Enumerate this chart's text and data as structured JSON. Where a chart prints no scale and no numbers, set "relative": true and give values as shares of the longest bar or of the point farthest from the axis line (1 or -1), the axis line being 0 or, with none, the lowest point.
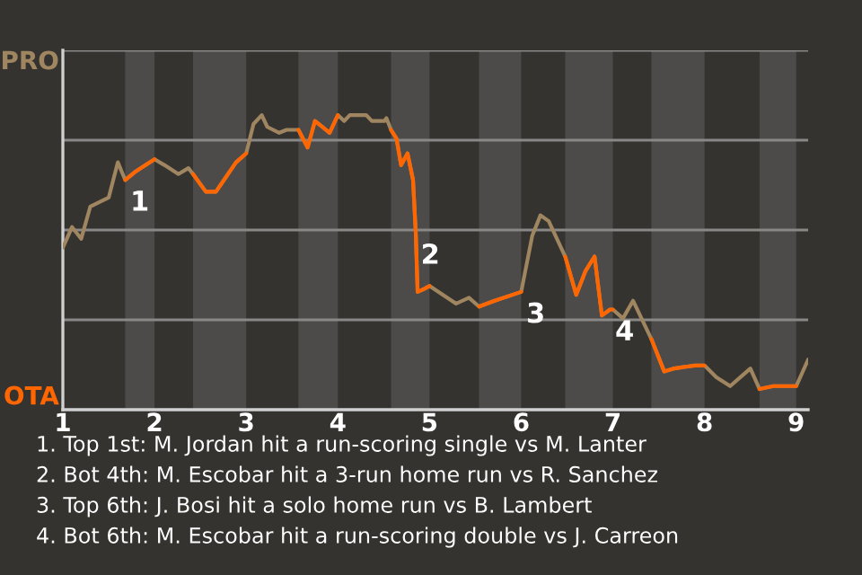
{
  "chart_data": {
    "type": "line",
    "relative": true,
    "x": [
      1,
      1.1,
      1.2,
      1.3,
      1.5,
      1.6,
      1.68,
      1.8,
      2,
      2.11,
      2.26,
      2.37,
      2.42,
      2.56,
      2.67,
      2.89,
      3,
      3.08,
      3.17,
      3.23,
      3.36,
      3.44,
      3.57,
      3.67,
      3.75,
      3.83,
      3.91,
      4,
      4.07,
      4.13,
      4.31,
      4.37,
      4.51,
      4.53,
      4.58,
      4.64,
      4.69,
      4.76,
      4.82,
      4.85,
      4.87,
      4.94,
      5,
      5.29,
      5.43,
      5.54,
      5.71,
      6,
      6.12,
      6.21,
      6.3,
      6.48,
      6.6,
      6.7,
      6.8,
      6.88,
      6.97,
      7,
      7.11,
      7.22,
      7.42,
      7.56,
      7.67,
      7.89,
      8,
      8.13,
      8.28,
      8.5,
      8.6,
      8.75,
      9,
      9.13
    ],
    "xlim": [
      1,
      9.13
    ],
    "xticks": [
      1,
      2,
      3,
      4,
      5,
      6,
      7,
      8,
      9
    ],
    "series": [
      {
        "name": "PRO",
        "color": "#a08660",
        "values": [
          0.55,
          0.62,
          0.58,
          0.69,
          0.72,
          0.84,
          0.78,
          0.81,
          0.85,
          0.83,
          0.8,
          0.82,
          0.8,
          0.74,
          0.74,
          0.84,
          0.87,
          0.97,
          1,
          0.96,
          0.94,
          0.95,
          0.95,
          0.89,
          0.98,
          0.96,
          0.94,
          1,
          0.98,
          1,
          1,
          0.98,
          0.98,
          0.99,
          0.95,
          0.92,
          0.83,
          0.87,
          0.78,
          0.6,
          0.4,
          0.41,
          0.42,
          0.36,
          0.38,
          0.35,
          0.37,
          0.4,
          0.59,
          0.66,
          0.64,
          0.52,
          0.39,
          0.47,
          0.52,
          0.32,
          0.34,
          0.34,
          0.31,
          0.37,
          0.24,
          0.13,
          0.14,
          0.15,
          0.15,
          0.11,
          0.08,
          0.14,
          0.07,
          0.08,
          0.08,
          0.17
        ]
      },
      {
        "name": "OTA",
        "color": "#ff6600",
        "values": [
          null,
          null,
          null,
          null,
          null,
          null,
          0.78,
          0.81,
          0.85,
          null,
          null,
          null,
          0.8,
          0.74,
          0.74,
          0.84,
          0.87,
          null,
          null,
          null,
          null,
          null,
          0.95,
          0.89,
          0.98,
          0.96,
          0.94,
          1,
          null,
          null,
          null,
          null,
          null,
          null,
          0.95,
          0.92,
          0.83,
          0.87,
          0.78,
          0.6,
          0.4,
          0.41,
          0.42,
          null,
          null,
          0.35,
          0.37,
          0.4,
          null,
          null,
          null,
          0.52,
          0.39,
          0.47,
          0.52,
          0.32,
          0.34,
          0.34,
          null,
          null,
          0.24,
          0.13,
          0.14,
          0.15,
          0.15,
          null,
          null,
          null,
          0.07,
          0.08,
          0.08,
          null
        ]
      }
    ],
    "grid": true,
    "bands": [
      {
        "axis": "x",
        "from": 1.68,
        "to": 2,
        "color": "#4d4b49"
      },
      {
        "axis": "x",
        "from": 2.42,
        "to": 3,
        "color": "#4d4b49"
      },
      {
        "axis": "x",
        "from": 3.57,
        "to": 4,
        "color": "#4d4b49"
      },
      {
        "axis": "x",
        "from": 4.58,
        "to": 5,
        "color": "#4d4b49"
      },
      {
        "axis": "x",
        "from": 5.54,
        "to": 6,
        "color": "#4d4b49"
      },
      {
        "axis": "x",
        "from": 6.48,
        "to": 7,
        "color": "#4d4b49"
      },
      {
        "axis": "x",
        "from": 7.42,
        "to": 8,
        "color": "#4d4b49"
      },
      {
        "axis": "x",
        "from": 8.6,
        "to": 9,
        "color": "#4d4b49"
      }
    ],
    "annotations": [
      {
        "text": "1",
        "x": 1.68,
        "y": 0.78
      },
      {
        "text": "2",
        "x": 4.85,
        "y": 0.6
      },
      {
        "text": "3",
        "x": 6,
        "y": 0.4
      },
      {
        "text": "4",
        "x": 6.97,
        "y": 0.34
      },
      "1. Top 1st: M. Jordan hit a run-scoring single vs M. Lanter",
      "2. Bot 4th: M. Escobar hit a 3-run home run vs R. Sanchez",
      "3. Top 6th: J. Bosi hit a solo home run vs B. Lambert",
      "4. Bot 6th: M. Escobar hit a run-scoring double vs J. Carreon"
    ]
  }
}
